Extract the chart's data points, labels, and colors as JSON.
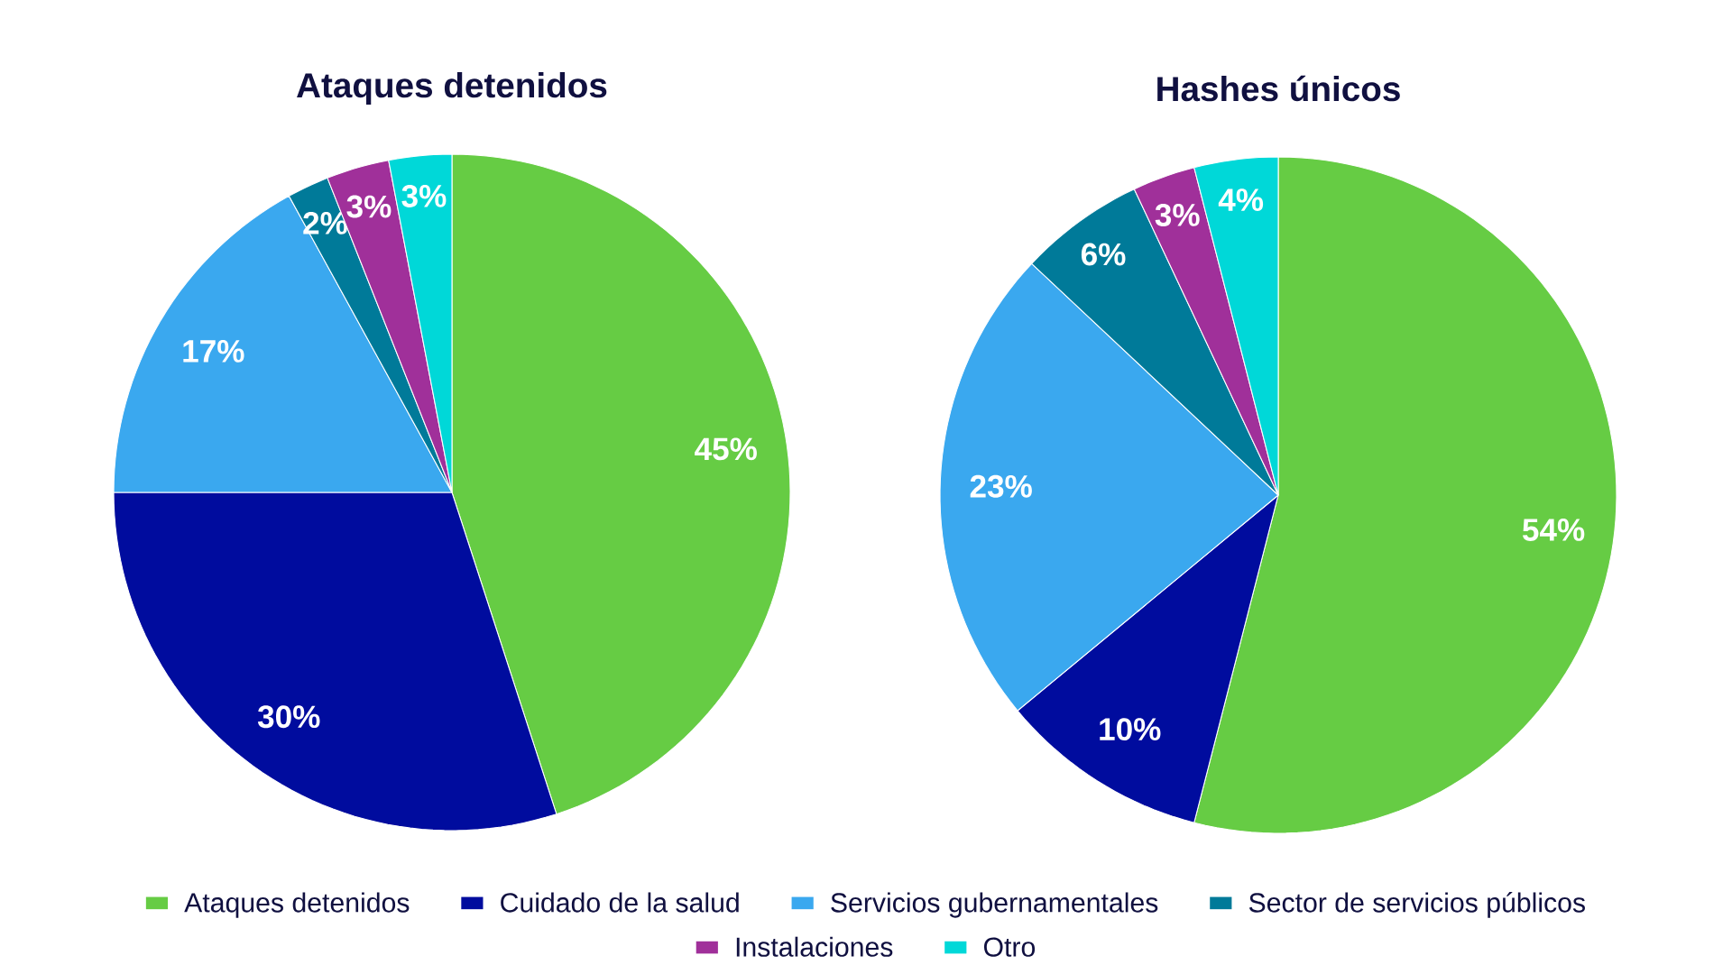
{
  "chart_data": [
    {
      "type": "pie",
      "title": "Ataques detenidos",
      "categories": [
        "Ataques detenidos",
        "Cuidado de la salud",
        "Servicios gubernamentales",
        "Sector de servicios públicos",
        "Instalaciones",
        "Otro"
      ],
      "values": [
        45,
        30,
        17,
        2,
        3,
        3
      ],
      "value_labels": [
        "45%",
        "30%",
        "17%",
        "2%",
        "3%",
        "3%"
      ],
      "colors": [
        "#66cc44",
        "#000c9e",
        "#3aa8ef",
        "#007a99",
        "#a0309a",
        "#00d8d8"
      ],
      "legend": "bottom"
    },
    {
      "type": "pie",
      "title": "Hashes únicos",
      "categories": [
        null,
        null,
        null,
        null,
        null,
        null
      ],
      "values": [
        54,
        10,
        23,
        6,
        3,
        4
      ],
      "value_labels": [
        "54%",
        "10%",
        "23%",
        "6%",
        "3%",
        "4%"
      ],
      "colors": [
        "#66cc44",
        "#000c9e",
        "#3aa8ef",
        "#007a99",
        "#a0309a",
        "#00d8d8"
      ]
    }
  ]
}
